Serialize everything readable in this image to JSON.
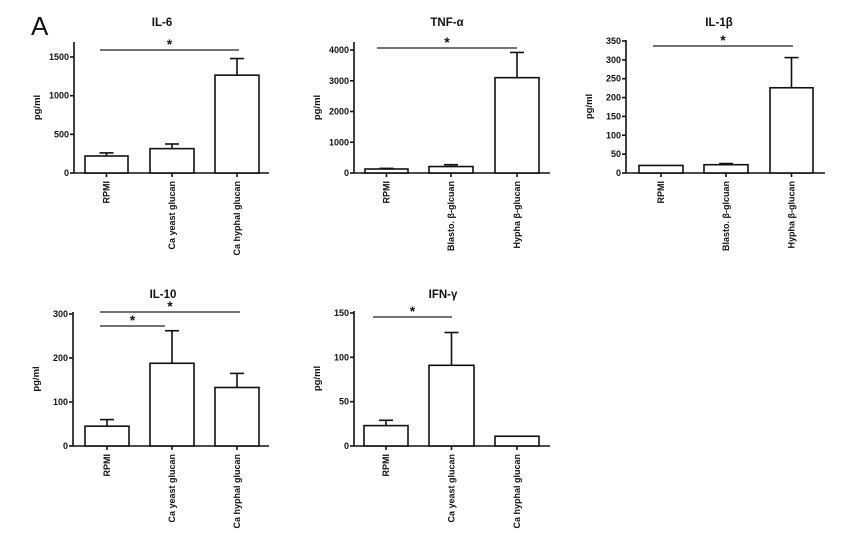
{
  "figure_label": "A",
  "chart_data": [
    {
      "type": "bar",
      "title": "IL-6",
      "ylabel": "pg/ml",
      "ylim": [
        0,
        1500
      ],
      "yticks": [
        "0",
        "500",
        "1000",
        "1500"
      ],
      "ytick_values": [
        0,
        500,
        1000,
        1500
      ],
      "categories": [
        "RPMI",
        "Ca yeast glucan",
        "Ca hyphal glucan"
      ],
      "values": [
        220,
        315,
        1265
      ],
      "error_upper": [
        260,
        375,
        1480
      ],
      "significance": [
        {
          "from": 0,
          "to": 2,
          "label": "*"
        }
      ]
    },
    {
      "type": "bar",
      "title": "TNF-α",
      "ylabel": "pg/ml",
      "ylim": [
        0,
        4000
      ],
      "yticks": [
        "0",
        "1000",
        "2000",
        "3000",
        "4000"
      ],
      "ytick_values": [
        0,
        1000,
        2000,
        3000,
        4000
      ],
      "categories": [
        "RPMI",
        "Blasto. β-glcuan",
        "Hypha β-glucan"
      ],
      "values": [
        130,
        210,
        3100
      ],
      "error_upper": [
        150,
        270,
        3920
      ],
      "significance": [
        {
          "from": 0,
          "to": 2,
          "label": "*"
        }
      ]
    },
    {
      "type": "bar",
      "title": "IL-1β",
      "ylabel": "pg/ml",
      "ylim": [
        0,
        350
      ],
      "yticks": [
        "0",
        "50",
        "100",
        "150",
        "200",
        "250",
        "300",
        "350"
      ],
      "ytick_values": [
        0,
        50,
        100,
        150,
        200,
        250,
        300,
        350
      ],
      "categories": [
        "RPMI",
        "Blasto. β-glcuan",
        "Hypha β-glucan"
      ],
      "values": [
        20,
        22,
        226
      ],
      "error_upper": [
        20,
        25,
        306
      ],
      "significance": [
        {
          "from": 0,
          "to": 2,
          "label": "*"
        }
      ]
    },
    {
      "type": "bar",
      "title": "IL-10",
      "ylabel": "pg/ml",
      "ylim": [
        0,
        300
      ],
      "yticks": [
        "0",
        "100",
        "200",
        "300"
      ],
      "ytick_values": [
        0,
        100,
        200,
        300
      ],
      "categories": [
        "RPMI",
        "Ca yeast glucan",
        "Ca hyphal glucan"
      ],
      "values": [
        45,
        188,
        133
      ],
      "error_upper": [
        60,
        262,
        165
      ],
      "significance": [
        {
          "from": 0,
          "to": 2,
          "label": "*"
        },
        {
          "from": 0,
          "to": 1,
          "label": "*"
        }
      ]
    },
    {
      "type": "bar",
      "title": "IFN-γ",
      "ylabel": "pg/ml",
      "ylim": [
        0,
        150
      ],
      "yticks": [
        "0",
        "50",
        "100",
        "150"
      ],
      "ytick_values": [
        0,
        50,
        100,
        150
      ],
      "categories": [
        "RPMI",
        "Ca yeast glucan",
        "Ca hyphal glucan"
      ],
      "values": [
        23,
        91,
        11
      ],
      "error_upper": [
        29,
        128,
        11
      ],
      "significance": [
        {
          "from": 0,
          "to": 1,
          "label": "*"
        }
      ]
    }
  ]
}
